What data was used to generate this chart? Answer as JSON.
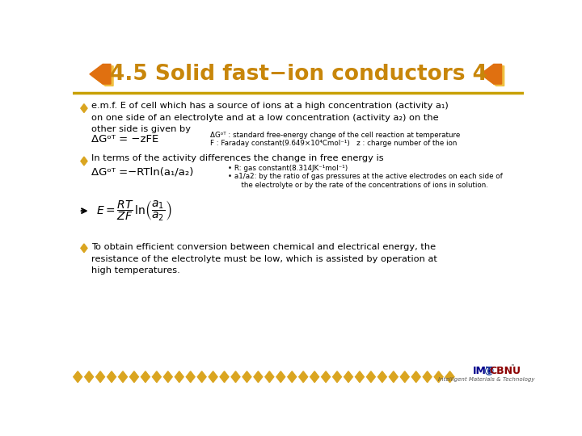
{
  "title": "4.5 Solid fast−ion conductors 4",
  "title_color": "#C8860A",
  "bg_color": "#FFFFFF",
  "bullet_color": "#DAA520",
  "text_color": "#000000",
  "orange_color": "#E87722",
  "gold_color": "#DAA520",
  "line_color": "#C8A000",
  "bullet1_main": "e.m.f. E of cell which has a source of ions at a high concentration (activity a₁)\non one side of an electrolyte and at a low concentration (activity a₂) on the\nother side is given by",
  "bullet1_eq": "ΔGᵒᵀ = −zFE",
  "bullet1_note1": "ΔGᵒᵀ : standard free-energy change of the cell reaction at temperature",
  "bullet1_note2": "F : Faraday constant(9.649×10⁴Cmol⁻¹)   z : charge number of the ion",
  "bullet2_main": "In terms of the activity differences the change in free energy is",
  "bullet2_eq": "ΔGᵒᵀ =−RTln(a₁/a₂)",
  "bullet2_note1": "• R: gas constant(8.314JK⁻¹mol⁻¹)",
  "bullet2_note2": "• a1/a2: by the ratio of gas pressures at the active electrodes on each side of",
  "bullet2_note3": "      the electrolyte or by the rate of the concentrations of ions in solution.",
  "bullet3_main": "To obtain efficient conversion between chemical and electrical energy, the\nresistance of the electrolyte must be low, which is assisted by operation at\nhigh temperatures.",
  "footer_diamonds_color": "#DAA520",
  "imt_color": "#00008B",
  "cbnu_color": "#8B0000",
  "at_color": "#2E4EA0"
}
